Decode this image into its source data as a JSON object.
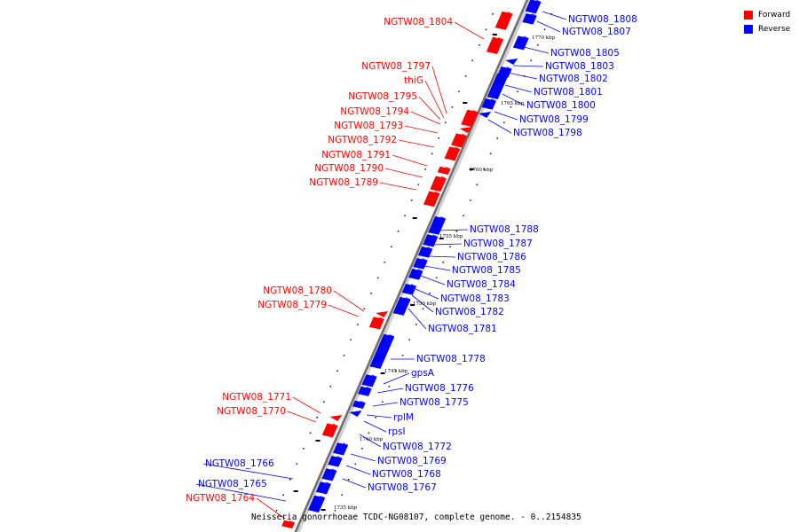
{
  "colors": {
    "forward": "#ff0000",
    "reverse": "#0000ff"
  },
  "legend": {
    "forward_label": "Forward",
    "reverse_label": "Reverse"
  },
  "caption": "Neisseria gonorrhoeae TCDC-NG08107, complete genome. - 0..2154835",
  "kbp_ticks": [
    "1770 kbp",
    "1765 kbp",
    "1760 kbp",
    "1755 kbp",
    "1750 kbp",
    "1745 kbp",
    "1740 kbp",
    "1735 kbp"
  ],
  "forward_genes": [
    "NGTW08_1804",
    "NGTW08_1797",
    "thiG",
    "NGTW08_1795",
    "NGTW08_1794",
    "NGTW08_1793",
    "NGTW08_1792",
    "NGTW08_1791",
    "NGTW08_1790",
    "NGTW08_1789",
    "NGTW08_1780",
    "NGTW08_1779",
    "NGTW08_1771",
    "NGTW08_1770",
    "NGTW08_1764"
  ],
  "reverse_genes": [
    "NGTW08_1808",
    "NGTW08_1807",
    "NGTW08_1805",
    "NGTW08_1803",
    "NGTW08_1802",
    "NGTW08_1801",
    "NGTW08_1800",
    "NGTW08_1799",
    "NGTW08_1798",
    "NGTW08_1788",
    "NGTW08_1787",
    "NGTW08_1786",
    "NGTW08_1785",
    "NGTW08_1784",
    "NGTW08_1783",
    "NGTW08_1782",
    "NGTW08_1781",
    "NGTW08_1778",
    "gpsA",
    "NGTW08_1776",
    "NGTW08_1775",
    "rplM",
    "rpsI",
    "NGTW08_1772",
    "NGTW08_1769",
    "NGTW08_1768",
    "NGTW08_1767",
    "NGTW08_1766",
    "NGTW08_1765"
  ]
}
